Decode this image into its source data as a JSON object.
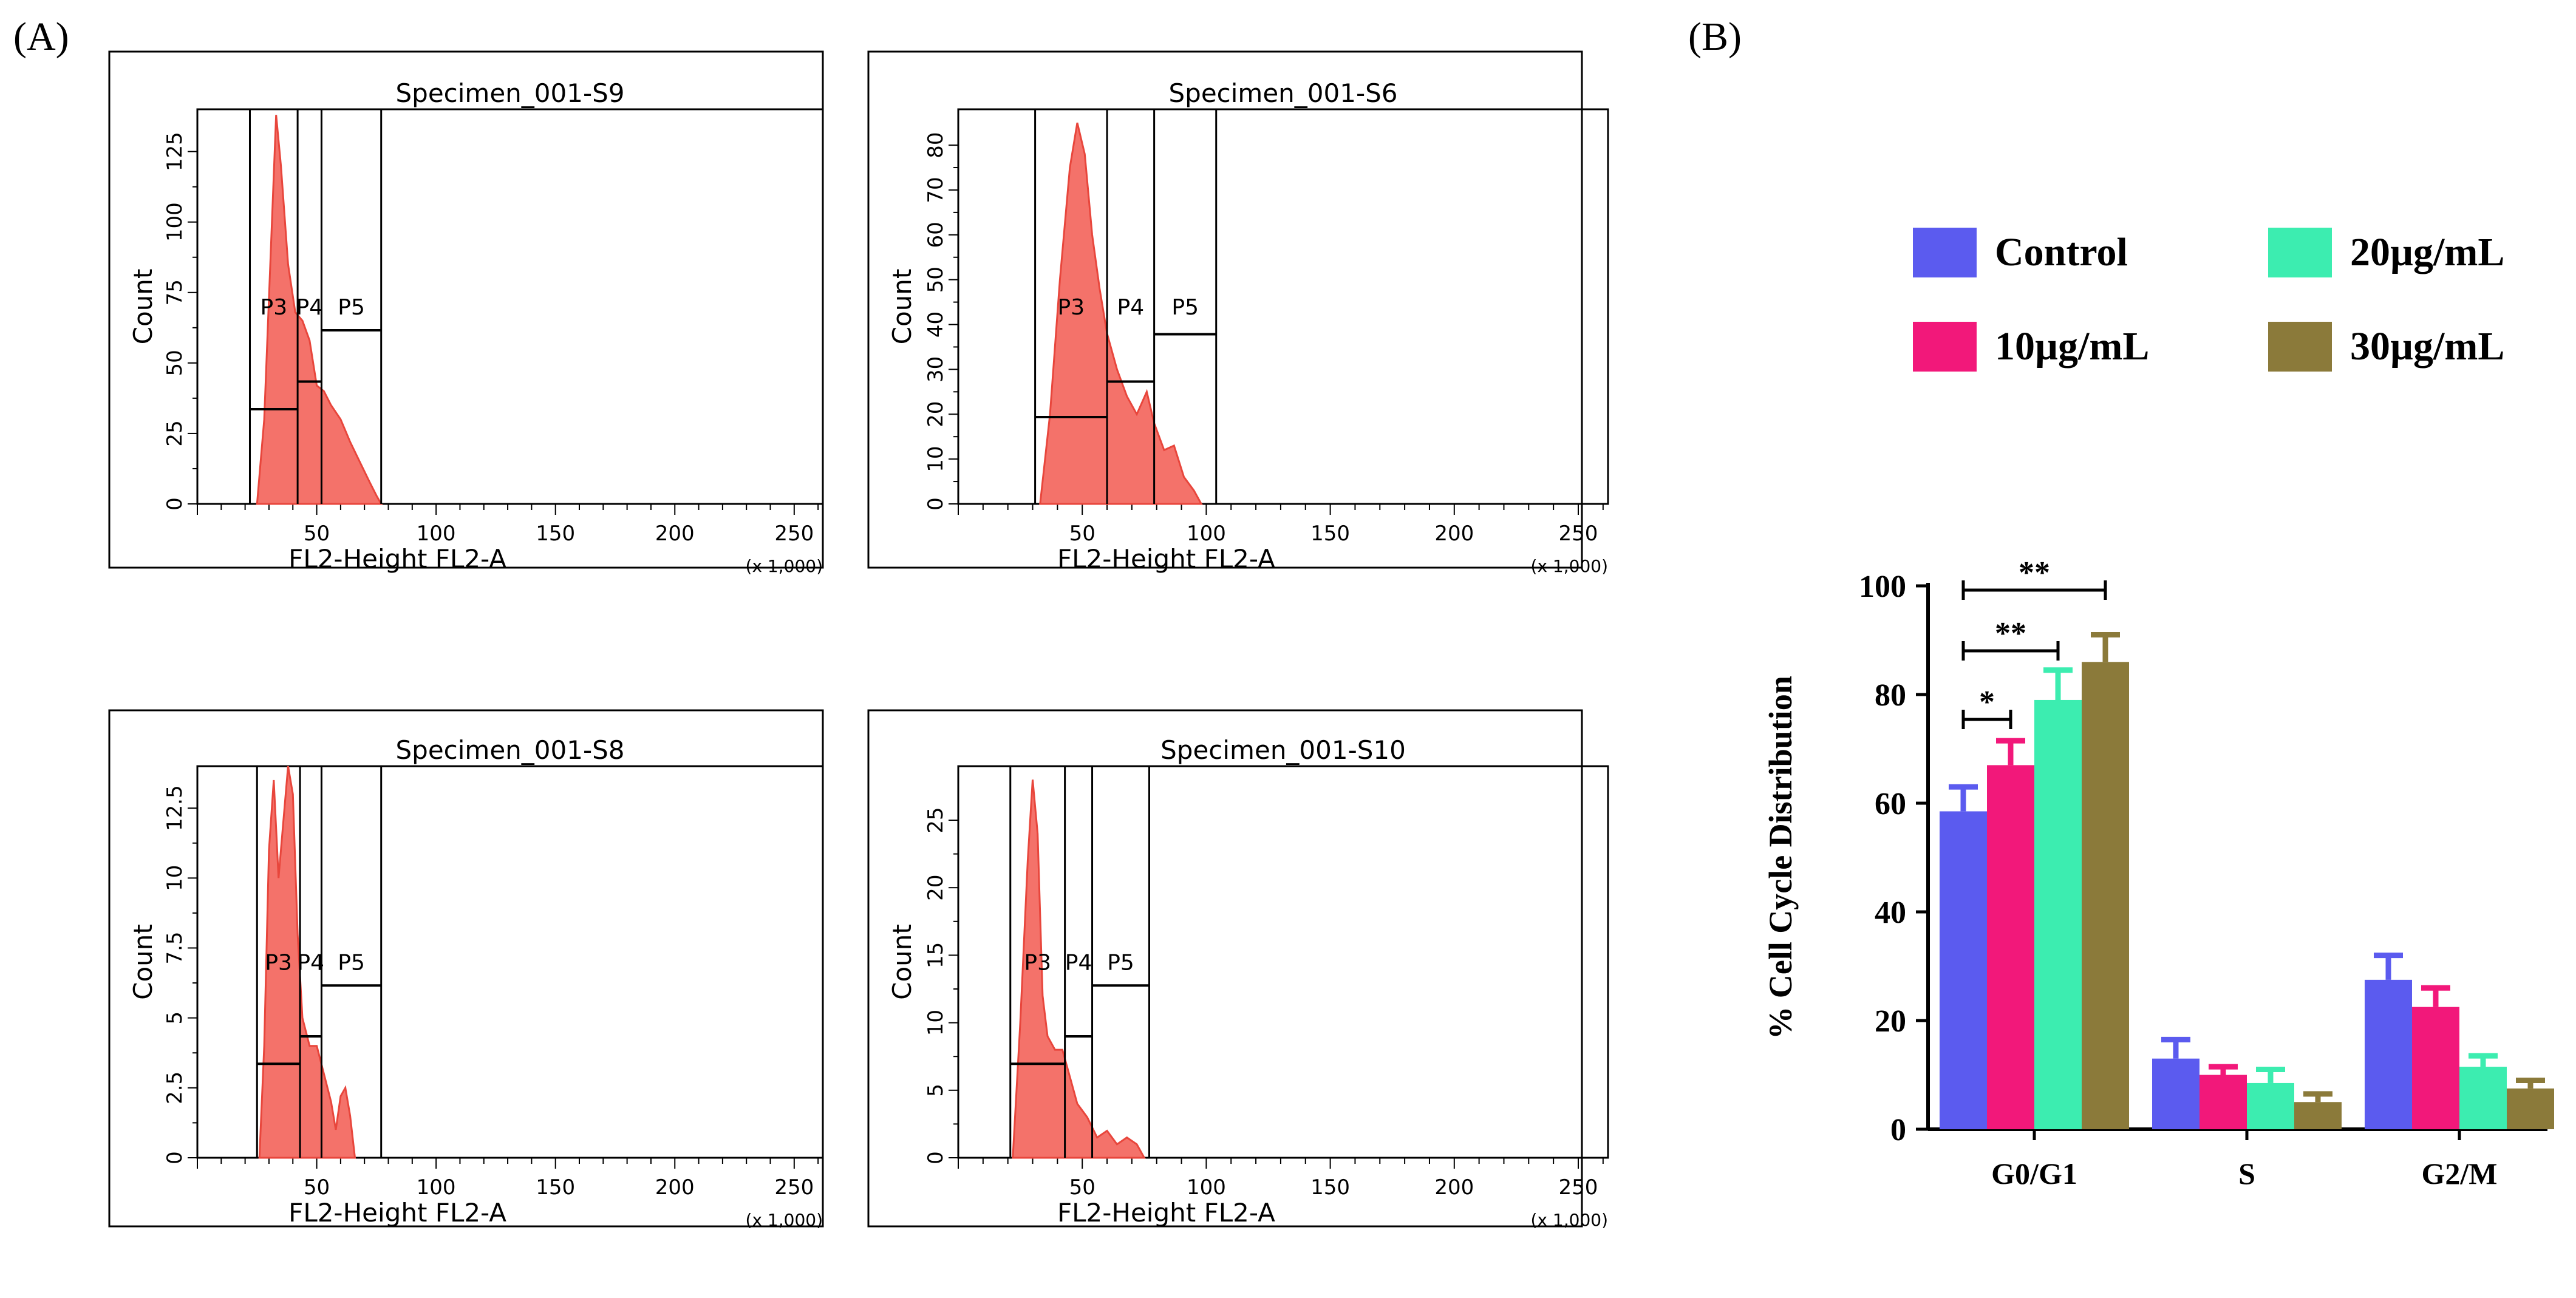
{
  "figure": {
    "panel_a_label": "(A)",
    "panel_b_label": "(B)"
  },
  "histograms": [
    {
      "title": "Specimen_001-S9",
      "y_label": "Count",
      "x_label": "FL2-Height FL2-A",
      "x_multiplier": "(x 1,000)",
      "x_ticks": [
        "50",
        "100",
        "150",
        "200",
        "250"
      ],
      "y_ticks": [
        "0",
        "25",
        "50",
        "75",
        "100",
        "125"
      ],
      "y_max": 140,
      "gates": [
        "P3",
        "P4",
        "P5"
      ],
      "profile": [
        [
          25,
          0
        ],
        [
          28,
          30
        ],
        [
          31,
          95
        ],
        [
          33,
          138
        ],
        [
          35,
          120
        ],
        [
          38,
          85
        ],
        [
          41,
          68
        ],
        [
          44,
          65
        ],
        [
          47,
          58
        ],
        [
          50,
          42
        ],
        [
          53,
          40
        ],
        [
          56,
          35
        ],
        [
          60,
          30
        ],
        [
          64,
          22
        ],
        [
          68,
          15
        ],
        [
          72,
          8
        ],
        [
          75,
          3
        ],
        [
          77,
          0
        ]
      ]
    },
    {
      "title": "Specimen_001-S6",
      "y_label": "Count",
      "x_label": "FL2-Height FL2-A",
      "x_multiplier": "(x 1,000)",
      "x_ticks": [
        "50",
        "100",
        "150",
        "200",
        "250"
      ],
      "y_ticks": [
        "0",
        "10",
        "20",
        "30",
        "40",
        "50",
        "60",
        "70",
        "80"
      ],
      "y_max": 88,
      "gates": [
        "P3",
        "P4",
        "P5"
      ],
      "profile": [
        [
          33,
          0
        ],
        [
          37,
          20
        ],
        [
          41,
          50
        ],
        [
          45,
          75
        ],
        [
          48,
          85
        ],
        [
          51,
          78
        ],
        [
          54,
          60
        ],
        [
          57,
          48
        ],
        [
          60,
          38
        ],
        [
          64,
          30
        ],
        [
          68,
          24
        ],
        [
          72,
          20
        ],
        [
          76,
          25
        ],
        [
          79,
          18
        ],
        [
          83,
          12
        ],
        [
          87,
          13
        ],
        [
          91,
          6
        ],
        [
          95,
          3
        ],
        [
          98,
          0
        ]
      ]
    },
    {
      "title": "Specimen_001-S8",
      "y_label": "Count",
      "x_label": "FL2-Height FL2-A",
      "x_multiplier": "(x 1,000)",
      "x_ticks": [
        "50",
        "100",
        "150",
        "200",
        "250"
      ],
      "y_ticks": [
        "0",
        "2.5",
        "5",
        "7.5",
        "10",
        "12.5"
      ],
      "y_max": 14,
      "gates": [
        "P3",
        "P4",
        "P5"
      ],
      "profile": [
        [
          26,
          0
        ],
        [
          28,
          4
        ],
        [
          30,
          11
        ],
        [
          32,
          13.5
        ],
        [
          34,
          10
        ],
        [
          36,
          12
        ],
        [
          38,
          14
        ],
        [
          40,
          13
        ],
        [
          42,
          8
        ],
        [
          44,
          5
        ],
        [
          47,
          4
        ],
        [
          50,
          4
        ],
        [
          53,
          3
        ],
        [
          56,
          2
        ],
        [
          58,
          1
        ],
        [
          60,
          2.2
        ],
        [
          62,
          2.5
        ],
        [
          64,
          1.5
        ],
        [
          66,
          0
        ]
      ]
    },
    {
      "title": "Specimen_001-S10",
      "y_label": "Count",
      "x_label": "FL2-Height FL2-A",
      "x_multiplier": "(x 1,000)",
      "x_ticks": [
        "50",
        "100",
        "150",
        "200",
        "250"
      ],
      "y_ticks": [
        "0",
        "5",
        "10",
        "15",
        "20",
        "25"
      ],
      "y_max": 29,
      "gates": [
        "P3",
        "P4",
        "P5"
      ],
      "profile": [
        [
          22,
          0
        ],
        [
          25,
          10
        ],
        [
          28,
          22
        ],
        [
          30,
          28
        ],
        [
          32,
          24
        ],
        [
          34,
          12
        ],
        [
          36,
          9
        ],
        [
          39,
          8
        ],
        [
          42,
          8
        ],
        [
          45,
          6
        ],
        [
          48,
          4
        ],
        [
          52,
          3
        ],
        [
          56,
          1.5
        ],
        [
          60,
          2
        ],
        [
          64,
          1
        ],
        [
          68,
          1.5
        ],
        [
          72,
          1
        ],
        [
          75,
          0
        ]
      ]
    }
  ],
  "chart_data": {
    "type": "bar",
    "ylabel": "% Cell Cycle Distribution",
    "xlabel": "",
    "ylim": [
      0,
      100
    ],
    "y_ticks": [
      0,
      20,
      40,
      60,
      80,
      100
    ],
    "categories": [
      "G0/G1",
      "S",
      "G2/M"
    ],
    "series": [
      {
        "name": "Control",
        "color": "#5b5bef",
        "values": [
          58.5,
          13,
          27.5
        ],
        "errors": [
          4.5,
          3.5,
          4.5
        ]
      },
      {
        "name": "10µg/mL",
        "color": "#f2187a",
        "values": [
          67,
          10,
          22.5
        ],
        "errors": [
          4.5,
          1.5,
          3.5
        ]
      },
      {
        "name": "20µg/mL",
        "color": "#3cedb0",
        "values": [
          79,
          8.5,
          11.5
        ],
        "errors": [
          5.5,
          2.5,
          2
        ]
      },
      {
        "name": "30µg/mL",
        "color": "#8b7a3a",
        "values": [
          86,
          5,
          7.5
        ],
        "errors": [
          5,
          1.5,
          1.5
        ]
      }
    ],
    "significance": [
      {
        "label": "*",
        "from_series": 0,
        "to_series": 1
      },
      {
        "label": "**",
        "from_series": 0,
        "to_series": 2
      },
      {
        "label": "**",
        "from_series": 0,
        "to_series": 3
      }
    ],
    "legend_position": "top"
  }
}
